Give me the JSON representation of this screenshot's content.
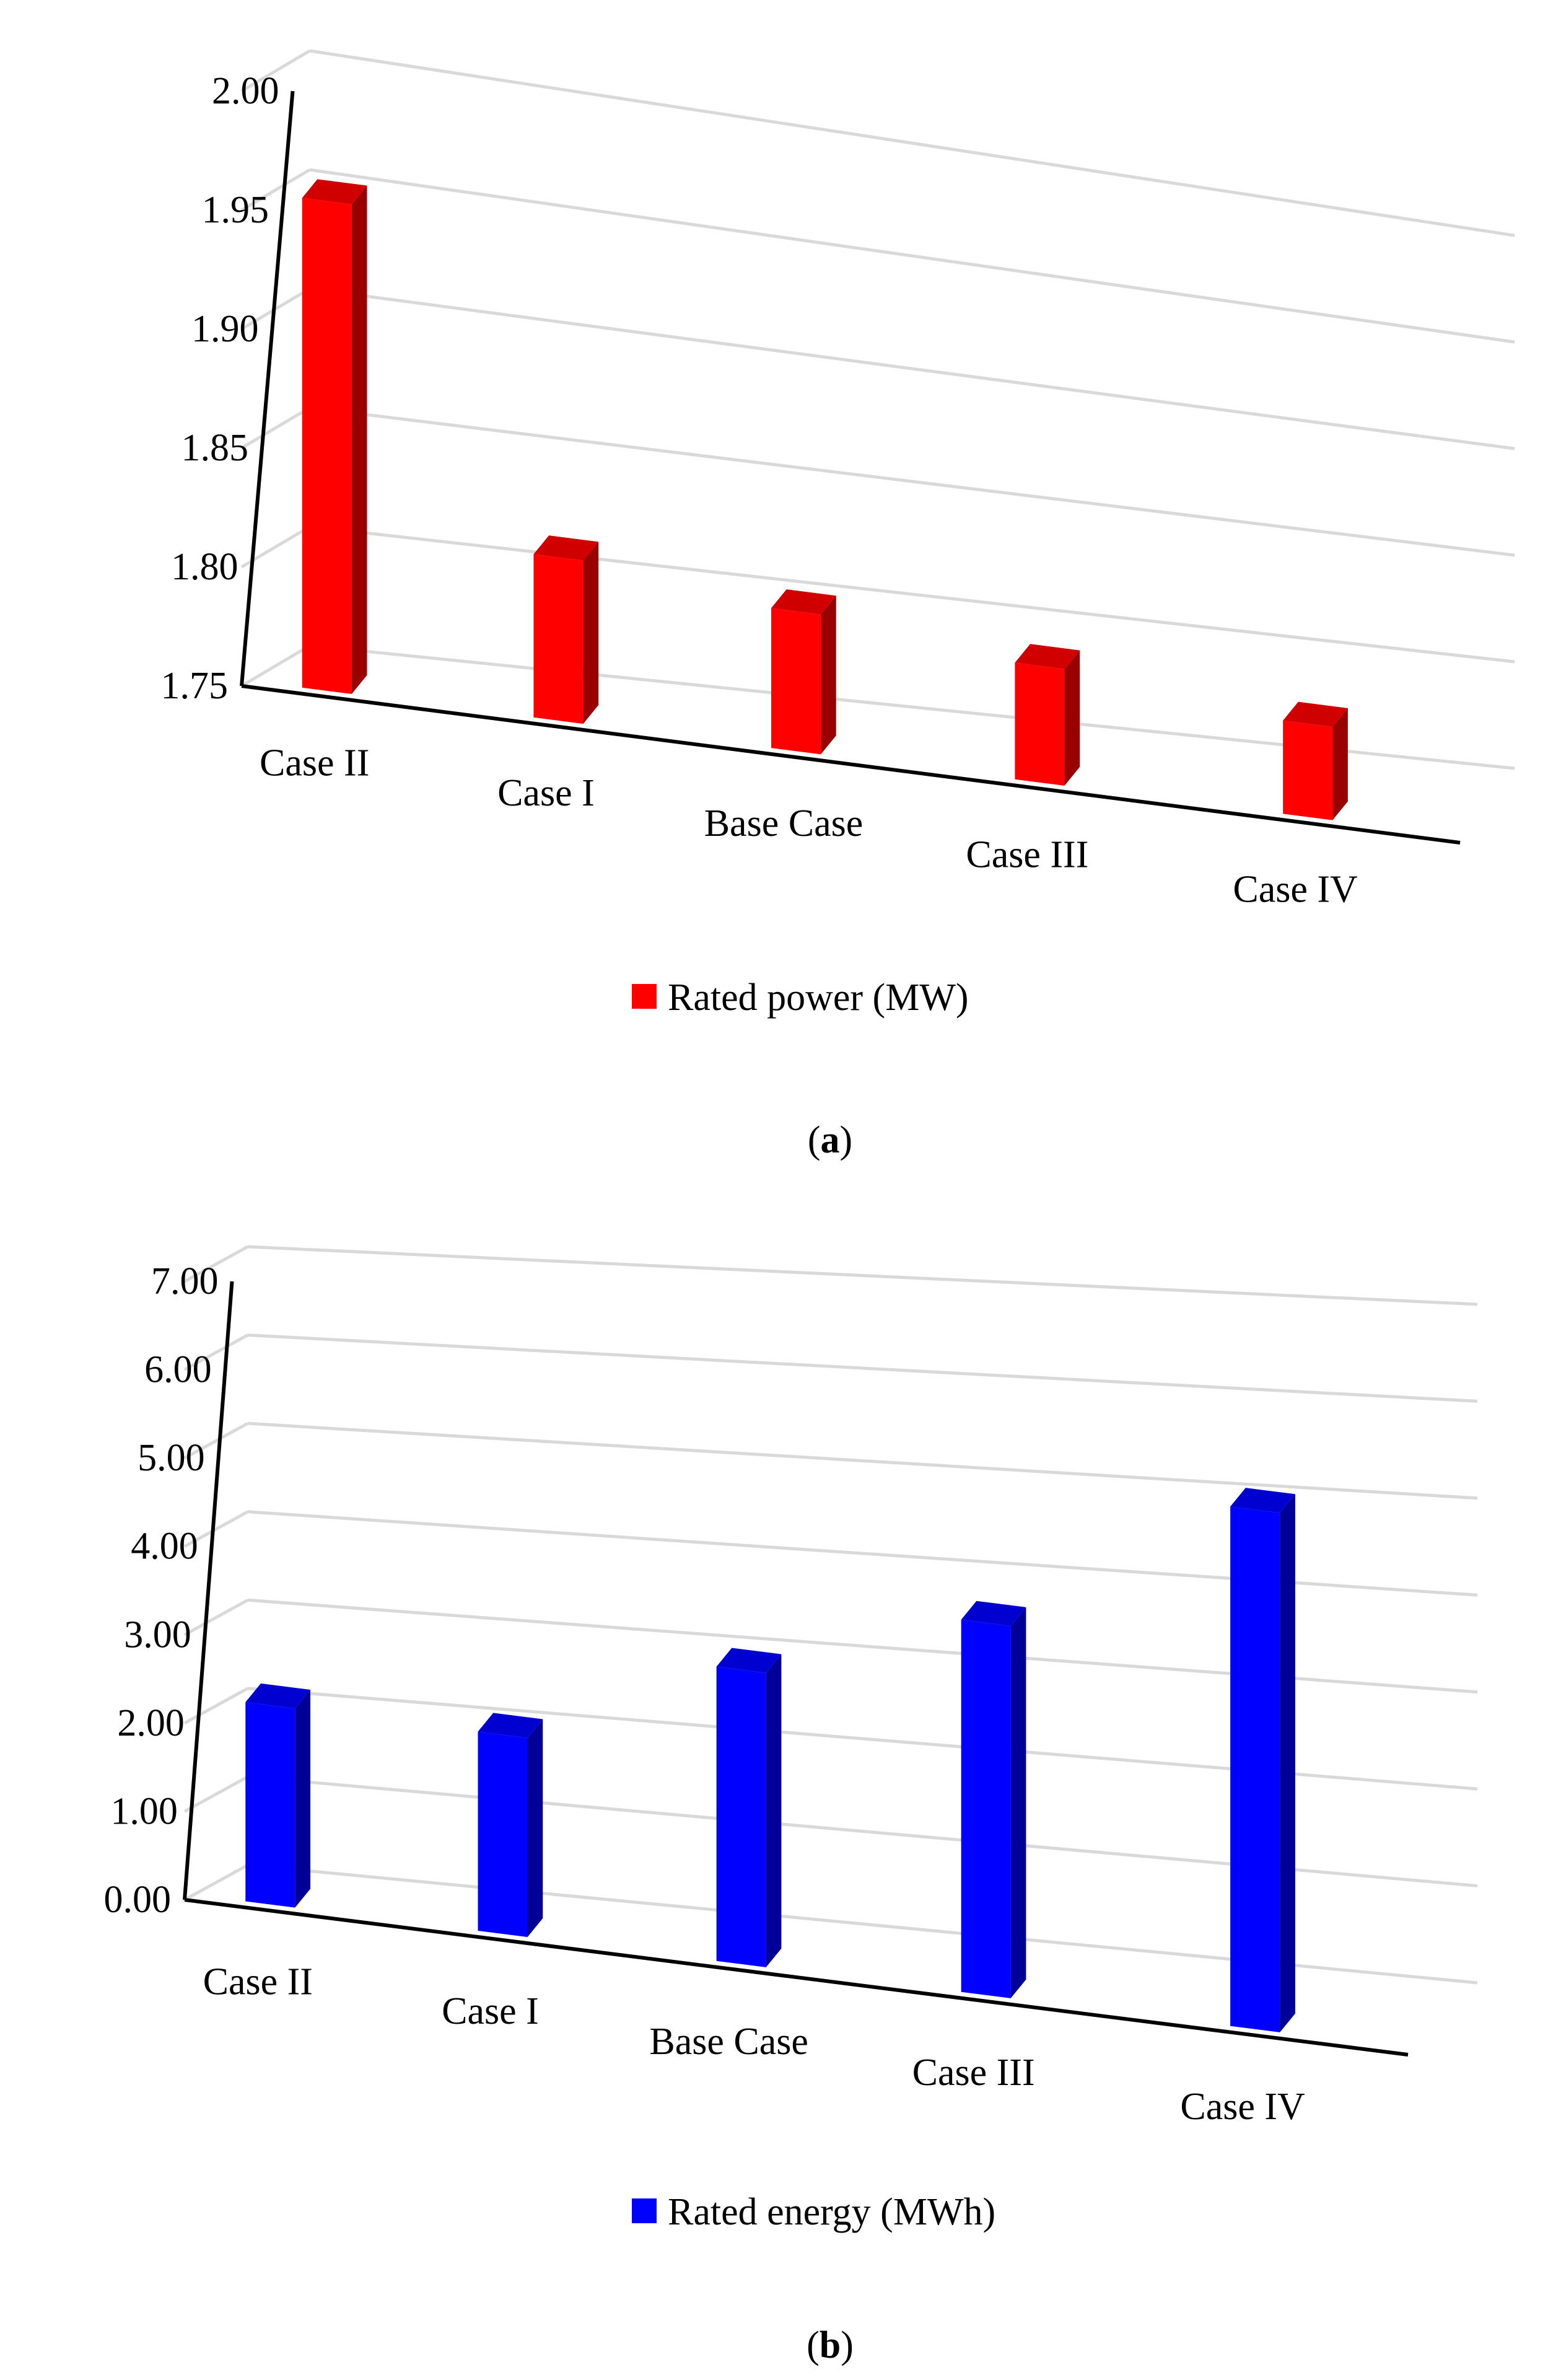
{
  "chart_data": [
    {
      "type": "bar",
      "panel_label": "a",
      "categories": [
        "Case II",
        "Case I",
        "Base Case",
        "Case III",
        "Case IV"
      ],
      "series": [
        {
          "name": "Rated power (MW)",
          "values": [
            1.96,
            1.82,
            1.81,
            1.8,
            1.79
          ],
          "color": "#ff0000"
        }
      ],
      "ylim": [
        1.75,
        2.0
      ],
      "yticks": [
        "1.75",
        "1.80",
        "1.85",
        "1.90",
        "1.95",
        "2.00"
      ],
      "grid": true,
      "legend": "bottom-center"
    },
    {
      "type": "bar",
      "panel_label": "b",
      "categories": [
        "Case II",
        "Case I",
        "Base Case",
        "Case III",
        "Case IV"
      ],
      "series": [
        {
          "name": "Rated energy (MWh)",
          "values": [
            2.3,
            2.3,
            3.4,
            4.3,
            6.0
          ],
          "color": "#0000ff"
        }
      ],
      "ylim": [
        0.0,
        7.0
      ],
      "yticks": [
        "0.00",
        "1.00",
        "2.00",
        "3.00",
        "4.00",
        "5.00",
        "6.00",
        "7.00"
      ],
      "grid": true,
      "legend": "bottom-center"
    }
  ]
}
